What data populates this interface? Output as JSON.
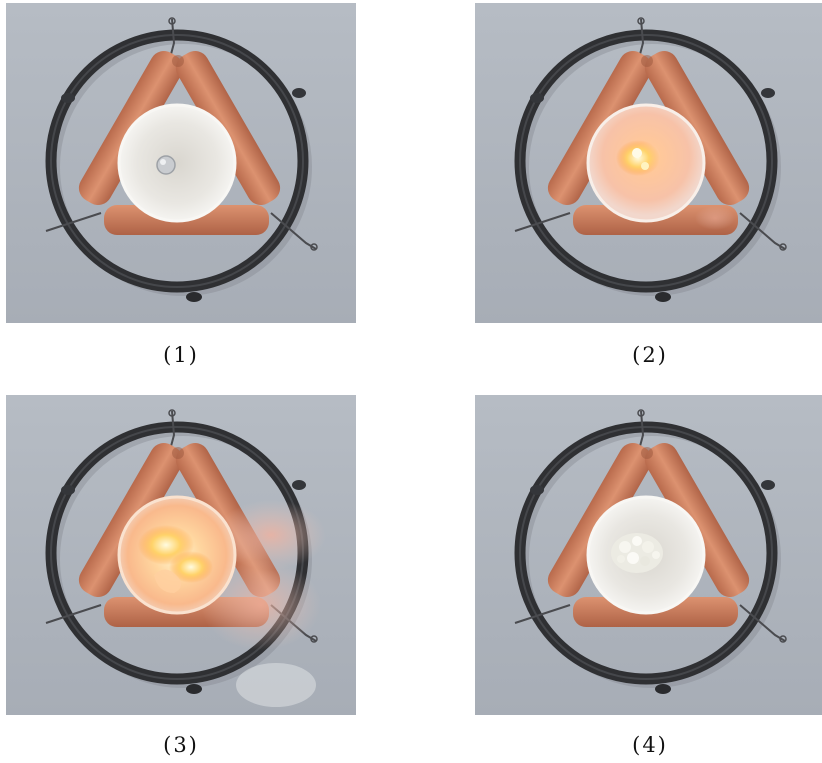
{
  "panels": [
    {
      "caption": "(1)",
      "state": "unlit"
    },
    {
      "caption": "(2)",
      "state": "igniting"
    },
    {
      "caption": "(3)",
      "state": "burning"
    },
    {
      "caption": "(4)",
      "state": "residue"
    }
  ]
}
